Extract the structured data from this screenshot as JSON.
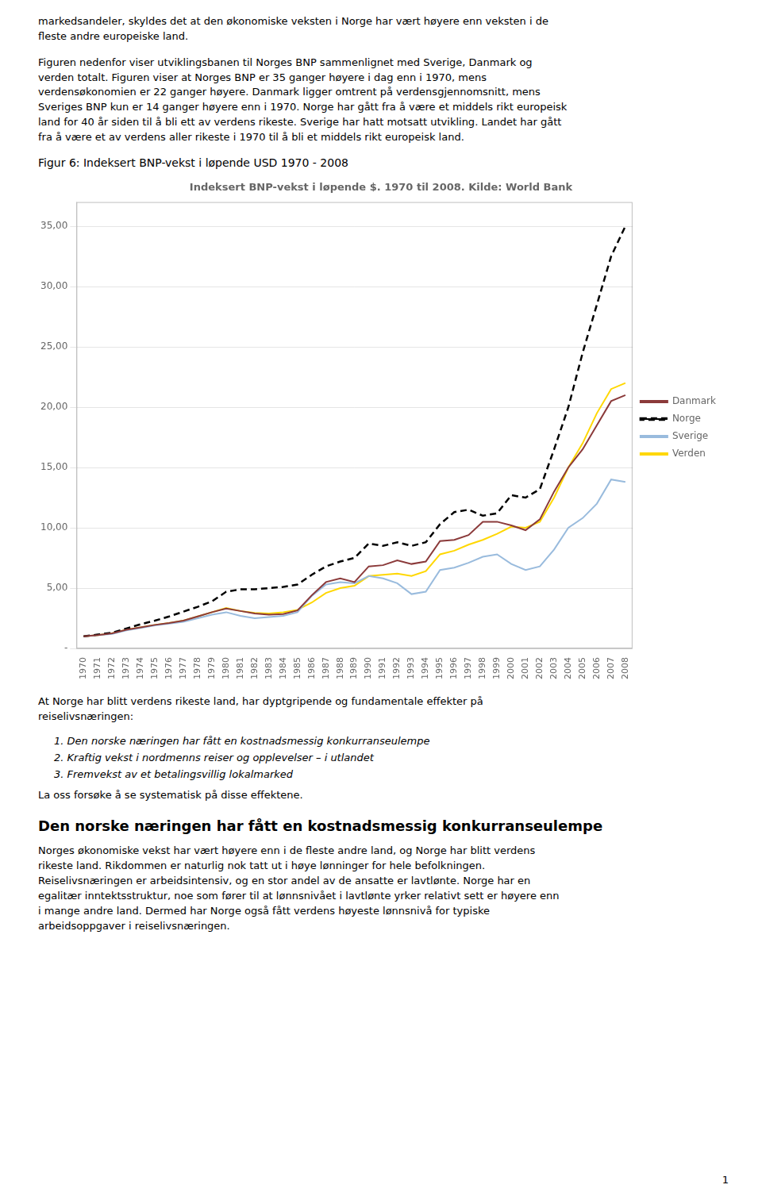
{
  "text_before": [
    {
      "paragraph": "markedsandeler, skyldes det at den økonomiske veksten i Norge har vært høyere enn veksten i de\nfleste andre europeiske land."
    },
    {
      "paragraph": "Figuren nedenfor viser utviklingsbanen til Norges BNP sammenlignet med Sverige, Danmark og\nverden totalt. Figuren viser at Norges BNP er 35 ganger høyere i dag enn i 1970, mens\nverdensøkonomien er 22 ganger høyere. Danmark ligger omtrent på verdensgjennomsnitt, mens\nSveriges BNP kun er 14 ganger høyere enn i 1970. Norge har gått fra å være et middels rikt europeisk\nland for 40 år siden til å bli ett av verdens rikeste. Sverige har hatt motsatt utvikling. Landet har gått\nfra å være et av verdens aller rikeste i 1970 til å bli et middels rikt europeisk land."
    }
  ],
  "caption": "Figur 6: Indeksert BNP-vekst i løpende USD 1970 - 2008",
  "chart_data": {
    "type": "line",
    "title": "Indeksert BNP-vekst i løpende $. 1970 til 2008. Kilde: World Bank",
    "x": [
      1970,
      1971,
      1972,
      1973,
      1974,
      1975,
      1976,
      1977,
      1978,
      1979,
      1980,
      1981,
      1982,
      1983,
      1984,
      1985,
      1986,
      1987,
      1988,
      1989,
      1990,
      1991,
      1992,
      1993,
      1994,
      1995,
      1996,
      1997,
      1998,
      1999,
      2000,
      2001,
      2002,
      2003,
      2004,
      2005,
      2006,
      2007,
      2008
    ],
    "series": [
      {
        "name": "Danmark",
        "color": "#8B3A3A",
        "line_style": "solid",
        "values": [
          1.0,
          1.1,
          1.25,
          1.55,
          1.75,
          1.95,
          2.1,
          2.3,
          2.65,
          3.0,
          3.3,
          3.1,
          2.9,
          2.8,
          2.85,
          3.15,
          4.4,
          5.5,
          5.8,
          5.5,
          6.8,
          6.9,
          7.3,
          7.0,
          7.2,
          8.9,
          9.0,
          9.4,
          10.5,
          10.5,
          10.2,
          9.8,
          10.7,
          13.0,
          15.0,
          16.5,
          18.5,
          20.5,
          21.0
        ]
      },
      {
        "name": "Norge",
        "color": "#000000",
        "line_style": "dashed",
        "values": [
          1.0,
          1.15,
          1.3,
          1.65,
          2.0,
          2.3,
          2.65,
          3.05,
          3.45,
          3.9,
          4.7,
          4.9,
          4.9,
          5.0,
          5.1,
          5.3,
          6.1,
          6.8,
          7.2,
          7.5,
          8.7,
          8.5,
          8.8,
          8.5,
          8.8,
          10.3,
          11.3,
          11.5,
          11.0,
          11.2,
          12.7,
          12.5,
          13.2,
          16.5,
          20.0,
          24.5,
          28.5,
          32.5,
          35.0
        ]
      },
      {
        "name": "Sverige",
        "color": "#99BBDD",
        "line_style": "solid",
        "values": [
          1.0,
          1.1,
          1.2,
          1.5,
          1.7,
          1.9,
          2.05,
          2.2,
          2.5,
          2.8,
          3.0,
          2.7,
          2.5,
          2.6,
          2.7,
          3.0,
          4.35,
          5.3,
          5.5,
          5.4,
          6.0,
          5.8,
          5.4,
          4.5,
          4.7,
          6.5,
          6.7,
          7.1,
          7.6,
          7.8,
          7.0,
          6.5,
          6.8,
          8.2,
          10.0,
          10.8,
          12.0,
          14.0,
          13.8
        ]
      },
      {
        "name": "Verden",
        "color": "#FFD700",
        "line_style": "solid",
        "values": [
          1.0,
          1.1,
          1.25,
          1.55,
          1.75,
          1.95,
          2.1,
          2.3,
          2.65,
          3.0,
          3.35,
          3.1,
          2.95,
          2.9,
          3.0,
          3.2,
          3.8,
          4.6,
          5.0,
          5.2,
          6.0,
          6.1,
          6.2,
          6.0,
          6.4,
          7.8,
          8.1,
          8.6,
          9.0,
          9.5,
          10.1,
          10.0,
          10.5,
          12.5,
          15.0,
          17.0,
          19.5,
          21.5,
          22.0
        ]
      }
    ],
    "xlim": [
      1969.5,
      2008.5
    ],
    "xticks": [
      1970,
      1971,
      1972,
      1973,
      1974,
      1975,
      1976,
      1977,
      1978,
      1979,
      1980,
      1981,
      1982,
      1983,
      1984,
      1985,
      1986,
      1987,
      1988,
      1989,
      1990,
      1991,
      1992,
      1993,
      1994,
      1995,
      1996,
      1997,
      1998,
      1999,
      2000,
      2001,
      2002,
      2003,
      2004,
      2005,
      2006,
      2007,
      2008
    ],
    "ylim": [
      0,
      37
    ],
    "yticks": [
      {
        "value": 0,
        "label": "-"
      },
      {
        "value": 5,
        "label": "5,00"
      },
      {
        "value": 10,
        "label": "10,00"
      },
      {
        "value": 15,
        "label": "15,00"
      },
      {
        "value": 20,
        "label": "20,00"
      },
      {
        "value": 25,
        "label": "25,00"
      },
      {
        "value": 30,
        "label": "30,00"
      },
      {
        "value": 35,
        "label": "35,00"
      }
    ],
    "grid": "y",
    "legend": "right"
  },
  "text_after": [
    {
      "paragraph": "At Norge har blitt verdens rikeste land, har dyptgripende og fundamentale effekter på\nreiselivsnæringen:"
    },
    {
      "list": [
        "1.   Den norske næringen har fått en kostnadsmessig konkurranseulempe",
        "2.   Kraftig vekst i nordmenns reiser og opplevelser – i utlandet",
        "3.   Fremvekst av et betalingsvillig lokalmarked"
      ]
    },
    {
      "paragraph": "La oss forsøke å se systematisk på disse effektene."
    },
    {
      "heading": "Den norske næringen har fått en kostnadsmessig konkurranseulempe"
    },
    {
      "paragraph": "Norges økonomiske vekst har vært høyere enn i de fleste andre land, og Norge har blitt verdens\nrikeste land. Rikdommen er naturlig nok tatt ut i høye lønninger for hele befolkningen.\nReiselivsnæringen er arbeidsintensiv, og en stor andel av de ansatte er lavtlønte. Norge har en\negalitær inntektsstruktur, noe som fører til at lønnsnivået i lavtlønte yrker relativt sett er høyere enn\ni mange andre land. Dermed har Norge også fått verdens høyeste lønnsnivå for typiske\narbeidsoppgaver i reiselivsnæringen."
    }
  ],
  "page_number": 1
}
